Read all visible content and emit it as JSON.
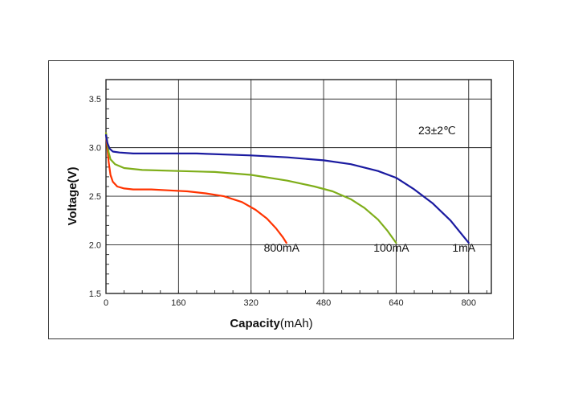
{
  "chart_data": {
    "type": "line",
    "xlabel_bold": "Capacity",
    "xlabel_unit": "(mAh)",
    "ylabel": "Voltage(V)",
    "xlim": [
      0,
      850
    ],
    "ylim": [
      1.5,
      3.7
    ],
    "xticks": [
      0,
      160,
      320,
      480,
      640,
      800
    ],
    "yticks": [
      1.5,
      2.0,
      2.5,
      3.0,
      3.5
    ],
    "ytick_labels": [
      "1.5",
      "2.0",
      "2.5",
      "3.0",
      "3.5"
    ],
    "annotation": "23±2℃",
    "grid": true,
    "series": [
      {
        "name": "800mA",
        "color": "#ff3300",
        "x": [
          0,
          3,
          6,
          10,
          15,
          25,
          40,
          60,
          100,
          140,
          180,
          220,
          260,
          300,
          330,
          355,
          375,
          390,
          398
        ],
        "y": [
          3.15,
          3.0,
          2.85,
          2.72,
          2.65,
          2.6,
          2.58,
          2.57,
          2.57,
          2.56,
          2.55,
          2.53,
          2.5,
          2.44,
          2.36,
          2.27,
          2.17,
          2.08,
          2.02
        ]
      },
      {
        "name": "100mA",
        "color": "#7fae1a",
        "x": [
          0,
          3,
          6,
          10,
          20,
          40,
          80,
          160,
          240,
          320,
          400,
          460,
          500,
          540,
          570,
          600,
          620,
          640
        ],
        "y": [
          3.15,
          3.05,
          2.95,
          2.88,
          2.83,
          2.79,
          2.77,
          2.76,
          2.75,
          2.72,
          2.66,
          2.6,
          2.55,
          2.47,
          2.38,
          2.26,
          2.15,
          2.02
        ]
      },
      {
        "name": "1mA",
        "color": "#1a1aa0",
        "x": [
          0,
          3,
          8,
          15,
          30,
          60,
          100,
          200,
          320,
          400,
          480,
          540,
          600,
          640,
          680,
          720,
          760,
          800
        ],
        "y": [
          3.13,
          3.05,
          2.99,
          2.96,
          2.95,
          2.94,
          2.94,
          2.94,
          2.92,
          2.9,
          2.87,
          2.83,
          2.76,
          2.69,
          2.57,
          2.43,
          2.25,
          2.02
        ]
      }
    ]
  }
}
